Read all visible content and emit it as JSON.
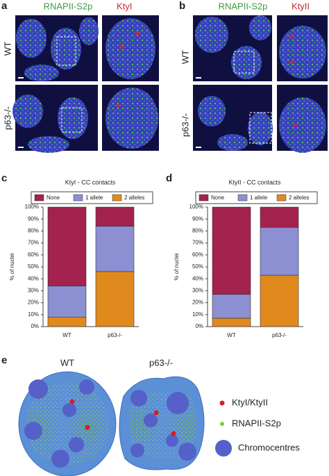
{
  "panel_a": {
    "label": "a",
    "channels": [
      "RNAPII-S2p",
      "KtyI"
    ],
    "rows": [
      "WT",
      "p63-/-"
    ]
  },
  "panel_b": {
    "label": "b",
    "channels": [
      "RNAPII-S2p",
      "KtyII"
    ],
    "rows": [
      "WT",
      "p63-/-"
    ]
  },
  "chart_data": [
    {
      "type": "bar",
      "stacked": true,
      "panel": "c",
      "title": "KtyI - CC contacts",
      "ylabel": "% of nuclei",
      "categories": [
        "WT",
        "p63-/-"
      ],
      "series": [
        {
          "name": "2 alleles",
          "color": "#e08a1e",
          "values": [
            8,
            46
          ]
        },
        {
          "name": "1 allele",
          "color": "#8c8fd1",
          "values": [
            26,
            38
          ]
        },
        {
          "name": "None",
          "color": "#a3224e",
          "values": [
            66,
            16
          ]
        }
      ],
      "legend_order": [
        2,
        1,
        0
      ],
      "legend": "top",
      "ylim": [
        0,
        100
      ],
      "yticks": [
        {
          "value": 0,
          "label": "0%"
        },
        {
          "value": 10,
          "label": "10%"
        },
        {
          "value": 20,
          "label": "20%"
        },
        {
          "value": 30,
          "label": "30%"
        },
        {
          "value": 40,
          "label": "40%"
        },
        {
          "value": 50,
          "label": "50%"
        },
        {
          "value": 60,
          "label": "60%"
        },
        {
          "value": 70,
          "label": "70%"
        },
        {
          "value": 80,
          "label": "80%"
        },
        {
          "value": 90,
          "label": "90%"
        },
        {
          "value": 100,
          "label": "100%"
        }
      ]
    },
    {
      "type": "bar",
      "stacked": true,
      "panel": "d",
      "title": "KtyII - CC contacts",
      "ylabel": "% of nuclei",
      "categories": [
        "WT",
        "p63-/-"
      ],
      "series": [
        {
          "name": "2 alleles",
          "color": "#e08a1e",
          "values": [
            7,
            43
          ]
        },
        {
          "name": "1 allele",
          "color": "#8c8fd1",
          "values": [
            20,
            40
          ]
        },
        {
          "name": "None",
          "color": "#a3224e",
          "values": [
            73,
            17
          ]
        }
      ],
      "legend_order": [
        2,
        1,
        0
      ],
      "legend": "top",
      "ylim": [
        0,
        100
      ],
      "yticks": [
        {
          "value": 0,
          "label": "0%"
        },
        {
          "value": 10,
          "label": "10%"
        },
        {
          "value": 20,
          "label": "20%"
        },
        {
          "value": 30,
          "label": "30%"
        },
        {
          "value": 40,
          "label": "40%"
        },
        {
          "value": 50,
          "label": "50%"
        },
        {
          "value": 60,
          "label": "60%"
        },
        {
          "value": 70,
          "label": "70%"
        },
        {
          "value": 80,
          "label": "80%"
        },
        {
          "value": 90,
          "label": "90%"
        },
        {
          "value": 100,
          "label": "100%"
        }
      ]
    }
  ],
  "panel_e": {
    "label": "e",
    "nuclei": [
      "WT",
      "p63-/-"
    ],
    "legend": [
      "KtyI/KtyII",
      "RNAPII-S2p",
      "Chromocentres"
    ]
  }
}
